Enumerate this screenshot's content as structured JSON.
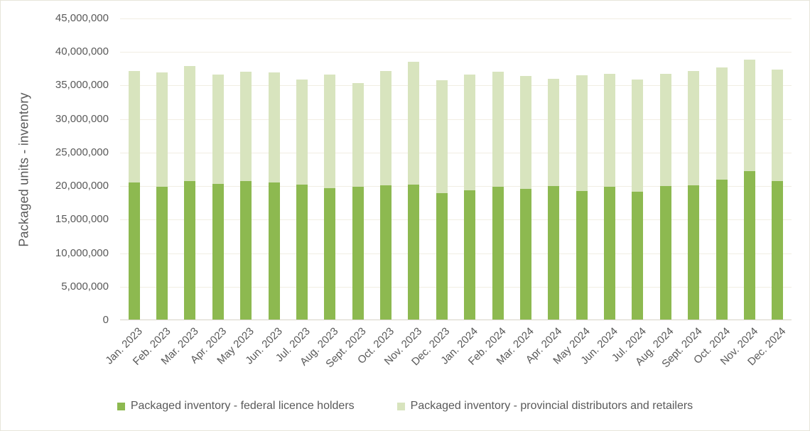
{
  "colors": {
    "background": "#ffffff",
    "frame_border": "#e7e5da",
    "gridline": "#f1eee3",
    "axis_line": "#d6d3c7",
    "text": "#595959",
    "federal_green": "#8db950",
    "provincial_green": "#d8e4be"
  },
  "chart_data": {
    "type": "bar",
    "stacked": true,
    "title": "",
    "xlabel": "",
    "ylabel": "Packaged units - inventory",
    "ylim": [
      0,
      45000000
    ],
    "y_tick_step": 5000000,
    "grid": "horizontal",
    "legend_position": "bottom",
    "y_ticks": [
      {
        "value": 0,
        "label": "0"
      },
      {
        "value": 5000000,
        "label": "5,000,000"
      },
      {
        "value": 10000000,
        "label": "10,000,000"
      },
      {
        "value": 15000000,
        "label": "15,000,000"
      },
      {
        "value": 20000000,
        "label": "20,000,000"
      },
      {
        "value": 25000000,
        "label": "25,000,000"
      },
      {
        "value": 30000000,
        "label": "30,000,000"
      },
      {
        "value": 35000000,
        "label": "35,000,000"
      },
      {
        "value": 40000000,
        "label": "40,000,000"
      },
      {
        "value": 45000000,
        "label": "45,000,000"
      }
    ],
    "categories": [
      "Jan. 2023",
      "Feb. 2023",
      "Mar. 2023",
      "Apr. 2023",
      "May 2023",
      "Jun. 2023",
      "Jul. 2023",
      "Aug. 2023",
      "Sept. 2023",
      "Oct. 2023",
      "Nov. 2023",
      "Dec. 2023",
      "Jan. 2024",
      "Feb. 2024",
      "Mar. 2024",
      "Apr. 2024",
      "May 2024",
      "Jun. 2024",
      "Jul. 2024",
      "Aug. 2024",
      "Sept. 2024",
      "Oct. 2024",
      "Nov. 2024",
      "Dec. 2024"
    ],
    "series": [
      {
        "name": "Packaged inventory - federal licence holders",
        "color": "#8db950",
        "values": [
          20400000,
          19800000,
          20700000,
          20200000,
          20600000,
          20400000,
          20100000,
          19600000,
          19800000,
          20000000,
          20100000,
          18800000,
          19300000,
          19800000,
          19500000,
          19900000,
          19200000,
          19800000,
          19100000,
          19900000,
          20000000,
          20900000,
          22100000,
          20600000
        ]
      },
      {
        "name": "Packaged inventory - provincial distributors and retailers",
        "color": "#d8e4be",
        "values": [
          16700000,
          17000000,
          17100000,
          16300000,
          16400000,
          16500000,
          15700000,
          16900000,
          15500000,
          17100000,
          18300000,
          16900000,
          17200000,
          17200000,
          16800000,
          16000000,
          17200000,
          16800000,
          16700000,
          16700000,
          17100000,
          16700000,
          16700000,
          16700000
        ]
      }
    ]
  }
}
